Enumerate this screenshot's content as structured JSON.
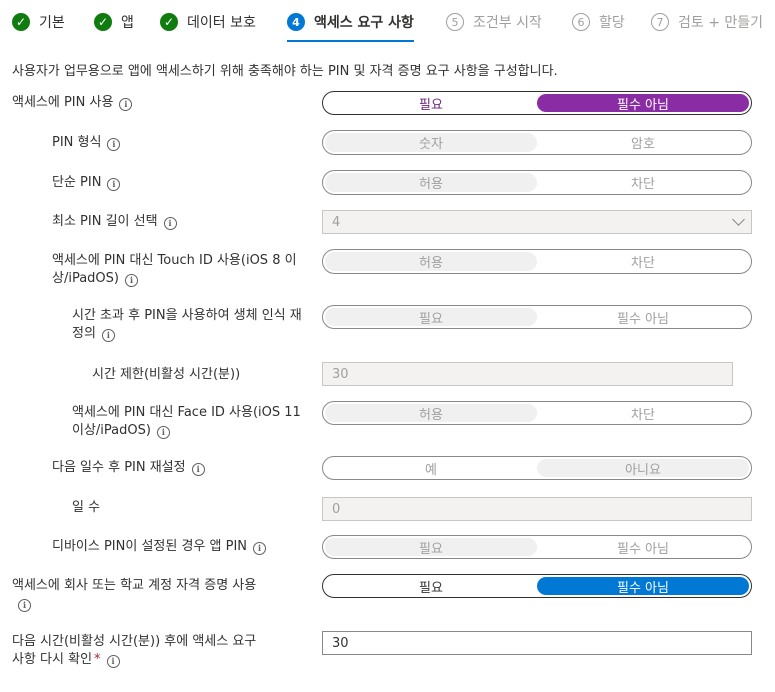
{
  "wizard": {
    "steps": [
      {
        "num": "✓",
        "label": "기본",
        "state": "done"
      },
      {
        "num": "✓",
        "label": "앱",
        "state": "done"
      },
      {
        "num": "✓",
        "label": "데이터 보호",
        "state": "done"
      },
      {
        "num": "4",
        "label": "액세스 요구 사항",
        "state": "active"
      },
      {
        "num": "5",
        "label": "조건부 시작",
        "state": "todo"
      },
      {
        "num": "6",
        "label": "할당",
        "state": "todo"
      },
      {
        "num": "7",
        "label": "검토 + 만들기",
        "state": "todo"
      }
    ]
  },
  "description": "사용자가 업무용으로 앱에 액세스하기 위해 충족해야 하는 PIN 및 자격 증명 요구 사항을 구성합니다.",
  "fields": {
    "pin_for_access": {
      "label": "액세스에 PIN 사용",
      "opt1": "필요",
      "opt2": "필수 아님",
      "selected": "필수 아님"
    },
    "pin_type": {
      "label": "PIN 형식",
      "opt1": "숫자",
      "opt2": "암호",
      "selected": "숫자"
    },
    "simple_pin": {
      "label": "단순 PIN",
      "opt1": "허용",
      "opt2": "차단",
      "selected": "허용"
    },
    "min_pin_length": {
      "label": "최소 PIN 길이 선택",
      "value": "4"
    },
    "touch_id": {
      "label": "액세스에 PIN 대신 Touch ID 사용(iOS 8 이상/iPadOS)",
      "opt1": "허용",
      "opt2": "차단",
      "selected": "허용"
    },
    "override_biometrics": {
      "label": "시간 초과 후 PIN을 사용하여 생체 인식 재정의",
      "opt1": "필요",
      "opt2": "필수 아님",
      "selected": "필요"
    },
    "timeout": {
      "label": "시간 제한(비활성 시간(분))",
      "value": "30"
    },
    "face_id": {
      "label": "액세스에 PIN 대신 Face ID 사용(iOS 11 이상/iPadOS)",
      "opt1": "허용",
      "opt2": "차단",
      "selected": "허용"
    },
    "pin_reset": {
      "label": "다음 일수 후 PIN 재설정",
      "opt1": "예",
      "opt2": "아니요",
      "selected": "아니요"
    },
    "days": {
      "label": "일 수",
      "value": "0"
    },
    "device_pin": {
      "label": "디바이스 PIN이 설정된 경우 앱 PIN",
      "opt1": "필요",
      "opt2": "필수 아님",
      "selected": "필요"
    },
    "work_credentials": {
      "label": "액세스에 회사 또는 학교 계정 자격 증명 사용",
      "opt1": "필요",
      "opt2": "필수 아님",
      "selected": "필수 아님"
    },
    "recheck": {
      "label": "다음 시간(비활성 시간(분)) 후에 액세스 요구 사항 다시 확인",
      "required_mark": "*",
      "value": "30"
    }
  },
  "colors": {
    "accent_blue": "#0078d4",
    "accent_purple": "#8a2da5",
    "done_green": "#107c10"
  }
}
